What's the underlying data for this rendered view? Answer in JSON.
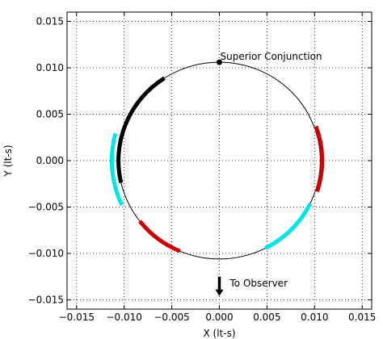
{
  "chart_data": {
    "type": "line",
    "title": "",
    "xlabel": "X (lt-s)",
    "ylabel": "Y (lt-s)",
    "xlim": [
      -0.016,
      0.016
    ],
    "ylim": [
      -0.016,
      0.016
    ],
    "x_ticks": [
      -0.015,
      -0.01,
      -0.005,
      0.0,
      0.005,
      0.01,
      0.015
    ],
    "y_ticks": [
      -0.015,
      -0.01,
      -0.005,
      0.0,
      0.005,
      0.01,
      0.015
    ],
    "x_tick_labels": [
      "−0.015",
      "−0.010",
      "−0.005",
      "0.000",
      "0.005",
      "0.010",
      "0.015"
    ],
    "y_tick_labels": [
      "−0.015",
      "−0.010",
      "−0.005",
      "0.000",
      "0.005",
      "0.010",
      "0.015"
    ],
    "grid": true,
    "orbit": {
      "shape": "circle",
      "center": [
        0.0,
        0.0
      ],
      "radius": 0.0106,
      "color": "#000000"
    },
    "segments": [
      {
        "color": "#000000",
        "radius": 0.0106,
        "angle_start_deg": 123,
        "angle_end_deg": 193
      },
      {
        "color": "#00e5e5",
        "radius": 0.0113,
        "angle_start_deg": 165,
        "angle_end_deg": 205
      },
      {
        "color": "#cc0000",
        "radius": 0.0108,
        "angle_start_deg": -18,
        "angle_end_deg": 20
      },
      {
        "color": "#cc0000",
        "radius": 0.0106,
        "angle_start_deg": 218,
        "angle_end_deg": 247
      },
      {
        "color": "#00e5e5",
        "radius": 0.0106,
        "angle_start_deg": -63,
        "angle_end_deg": -26
      }
    ],
    "annotations": [
      {
        "text": "Superior Conjunction",
        "x": 0.0,
        "y": 0.0106,
        "marker": "dot"
      },
      {
        "text": "To Observer",
        "x": 0.0,
        "y": -0.0132,
        "marker": "arrow-down"
      }
    ]
  }
}
